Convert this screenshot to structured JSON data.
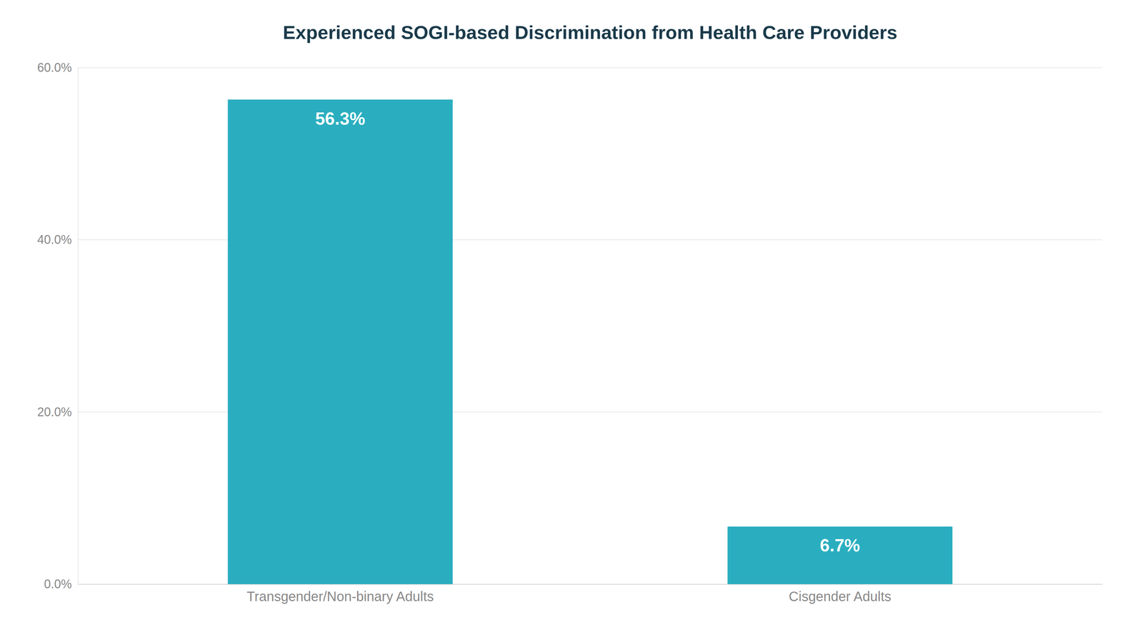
{
  "chart_data": {
    "type": "bar",
    "title": "Experienced SOGI-based Discrimination from Health Care Providers",
    "categories": [
      "Transgender/Non-binary Adults",
      "Cisgender Adults"
    ],
    "values": [
      56.3,
      6.7
    ],
    "value_labels": [
      "56.3%",
      "6.7%"
    ],
    "data_labels": true,
    "color": "#2aaebf",
    "ylim": [
      0,
      60
    ],
    "yticks": [
      {
        "value": 0,
        "label": "0.0%"
      },
      {
        "value": 20,
        "label": "20.0%"
      },
      {
        "value": 40,
        "label": "40.0%"
      },
      {
        "value": 60,
        "label": "60.0%"
      }
    ],
    "grid": true
  }
}
